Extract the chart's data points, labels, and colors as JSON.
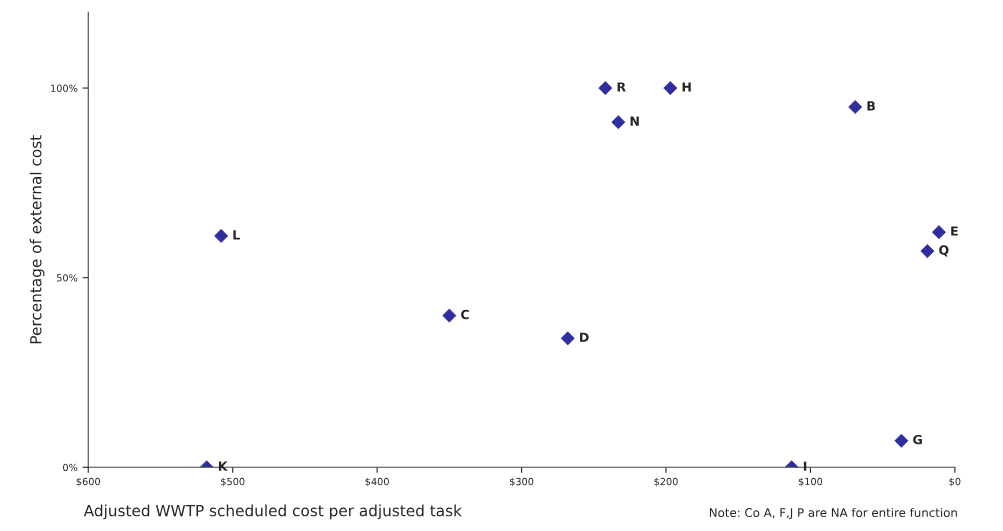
{
  "chart_data": {
    "type": "scatter",
    "xlabel": "Adjusted WWTP scheduled cost per adjusted task",
    "ylabel": "Percentage of external cost",
    "x": [
      242,
      197,
      233,
      69,
      508,
      11,
      19,
      350,
      268,
      518,
      113,
      37
    ],
    "series": [
      {
        "color": "#2e2e9e",
        "values": [
          100,
          100,
          91,
          95,
          61,
          62,
          57,
          40,
          34,
          0,
          0,
          7
        ]
      }
    ],
    "marker": "diamond",
    "xlim": [
      600,
      0
    ],
    "xticks": [
      {
        "value": 600,
        "label": "$600"
      },
      {
        "value": 500,
        "label": "$500"
      },
      {
        "value": 400,
        "label": "$400"
      },
      {
        "value": 300,
        "label": "$300"
      },
      {
        "value": 200,
        "label": "$200"
      },
      {
        "value": 100,
        "label": "$100"
      },
      {
        "value": 0,
        "label": "$0"
      }
    ],
    "ylim": [
      0,
      120
    ],
    "yticks": [
      {
        "value": 0,
        "label": "0%"
      },
      {
        "value": 50,
        "label": "50%"
      },
      {
        "value": 100,
        "label": "100%"
      }
    ],
    "grid": false,
    "legend": false,
    "annotations": [
      {
        "text": "R",
        "x": 242,
        "y": 100
      },
      {
        "text": "H",
        "x": 197,
        "y": 100
      },
      {
        "text": "N",
        "x": 233,
        "y": 91
      },
      {
        "text": "B",
        "x": 69,
        "y": 95
      },
      {
        "text": "L",
        "x": 508,
        "y": 61
      },
      {
        "text": "E",
        "x": 11,
        "y": 62
      },
      {
        "text": "Q",
        "x": 19,
        "y": 57
      },
      {
        "text": "C",
        "x": 350,
        "y": 40
      },
      {
        "text": "D",
        "x": 268,
        "y": 34
      },
      {
        "text": "K",
        "x": 518,
        "y": 0
      },
      {
        "text": "I",
        "x": 113,
        "y": 0
      },
      {
        "text": "G",
        "x": 37,
        "y": 7
      },
      "Note: Co A, F,J P are NA for entire function"
    ]
  }
}
